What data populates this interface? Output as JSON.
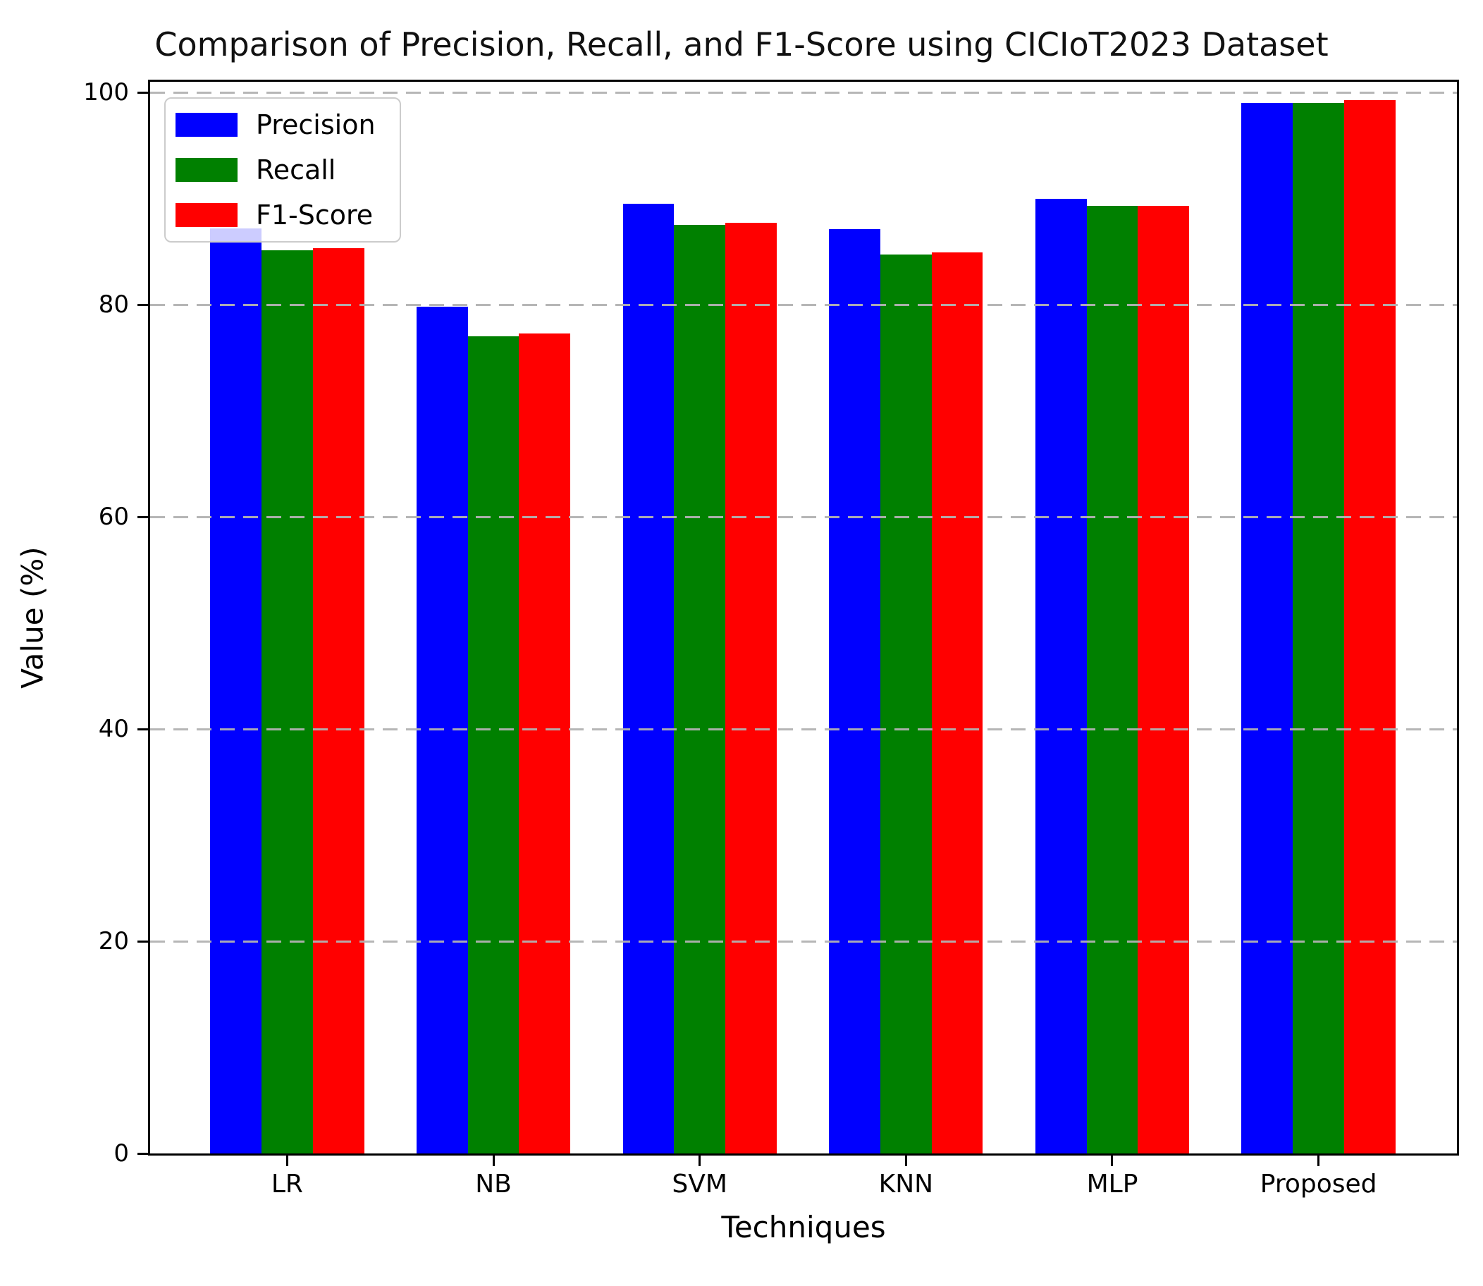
{
  "figure": {
    "title": "Comparison of Precision, Recall, and F1-Score using CICIoT2023 Dataset",
    "xlabel": "Techniques",
    "ylabel": "Value (%)"
  },
  "legend": {
    "items": [
      {
        "label": "Precision",
        "color": "#0000ff"
      },
      {
        "label": "Recall",
        "color": "#008000"
      },
      {
        "label": "F1-Score",
        "color": "#ff0000"
      }
    ]
  },
  "chart_data": {
    "type": "bar",
    "title": "Comparison of Precision, Recall, and F1-Score using CICIoT2023 Dataset",
    "xlabel": "Techniques",
    "ylabel": "Value (%)",
    "categories": [
      "LR",
      "NB",
      "SVM",
      "KNN",
      "MLP",
      "Proposed"
    ],
    "series": [
      {
        "name": "Precision",
        "color": "#0000ff",
        "values": [
          87.2,
          79.8,
          89.5,
          87.1,
          90.0,
          99.0
        ]
      },
      {
        "name": "Recall",
        "color": "#008000",
        "values": [
          85.1,
          77.0,
          87.5,
          84.7,
          89.3,
          99.0
        ]
      },
      {
        "name": "F1-Score",
        "color": "#ff0000",
        "values": [
          85.3,
          77.3,
          87.7,
          84.9,
          89.3,
          99.3
        ]
      }
    ],
    "ylim": [
      0,
      101
    ],
    "yticks": [
      0,
      20,
      40,
      60,
      80,
      100
    ],
    "grid": true,
    "grid_style": "dashed",
    "grid_color": "#b2b2b2",
    "legend_position": "upper left",
    "bar_width_pct": 3.925,
    "group_center_pct": [
      10.484,
      26.269,
      42.054,
      57.839,
      73.624,
      89.409
    ]
  }
}
